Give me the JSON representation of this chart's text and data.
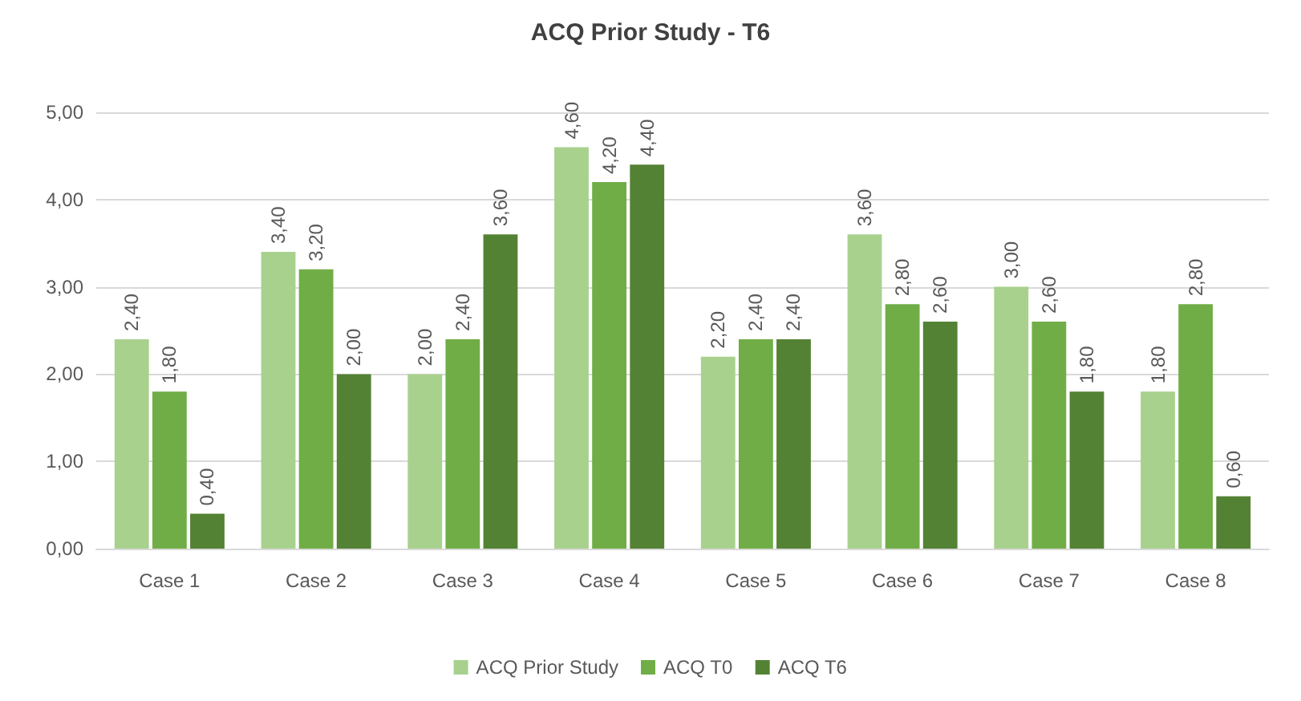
{
  "chart_data": {
    "type": "bar",
    "title": "ACQ Prior Study - T6",
    "categories": [
      "Case 1",
      "Case 2",
      "Case 3",
      "Case 4",
      "Case 5",
      "Case 6",
      "Case 7",
      "Case 8"
    ],
    "series": [
      {
        "name": "ACQ Prior Study",
        "color": "#a9d18e",
        "values": [
          2.4,
          3.4,
          2.0,
          4.6,
          2.2,
          3.6,
          3.0,
          1.8
        ],
        "value_labels": [
          "2,40",
          "3,40",
          "2,00",
          "4,60",
          "2,20",
          "3,60",
          "3,00",
          "1,80"
        ]
      },
      {
        "name": "ACQ T0",
        "color": "#70ad47",
        "values": [
          1.8,
          3.2,
          2.4,
          4.2,
          2.4,
          2.8,
          2.6,
          2.8
        ],
        "value_labels": [
          "1,80",
          "3,20",
          "2,40",
          "4,20",
          "2,40",
          "2,80",
          "2,60",
          "2,80"
        ]
      },
      {
        "name": "ACQ T6",
        "color": "#548235",
        "values": [
          0.4,
          2.0,
          3.6,
          4.4,
          2.4,
          2.6,
          1.8,
          0.6
        ],
        "value_labels": [
          "0,40",
          "2,00",
          "3,60",
          "4,40",
          "2,40",
          "2,60",
          "1,80",
          "0,60"
        ]
      }
    ],
    "ylim": [
      0,
      5
    ],
    "yticks": [
      {
        "value": 0,
        "label": "0,00"
      },
      {
        "value": 1,
        "label": "1,00"
      },
      {
        "value": 2,
        "label": "2,00"
      },
      {
        "value": 3,
        "label": "3,00"
      },
      {
        "value": 4,
        "label": "4,00"
      },
      {
        "value": 5,
        "label": "5,00"
      }
    ],
    "grid": "y",
    "legend": "bottom"
  }
}
